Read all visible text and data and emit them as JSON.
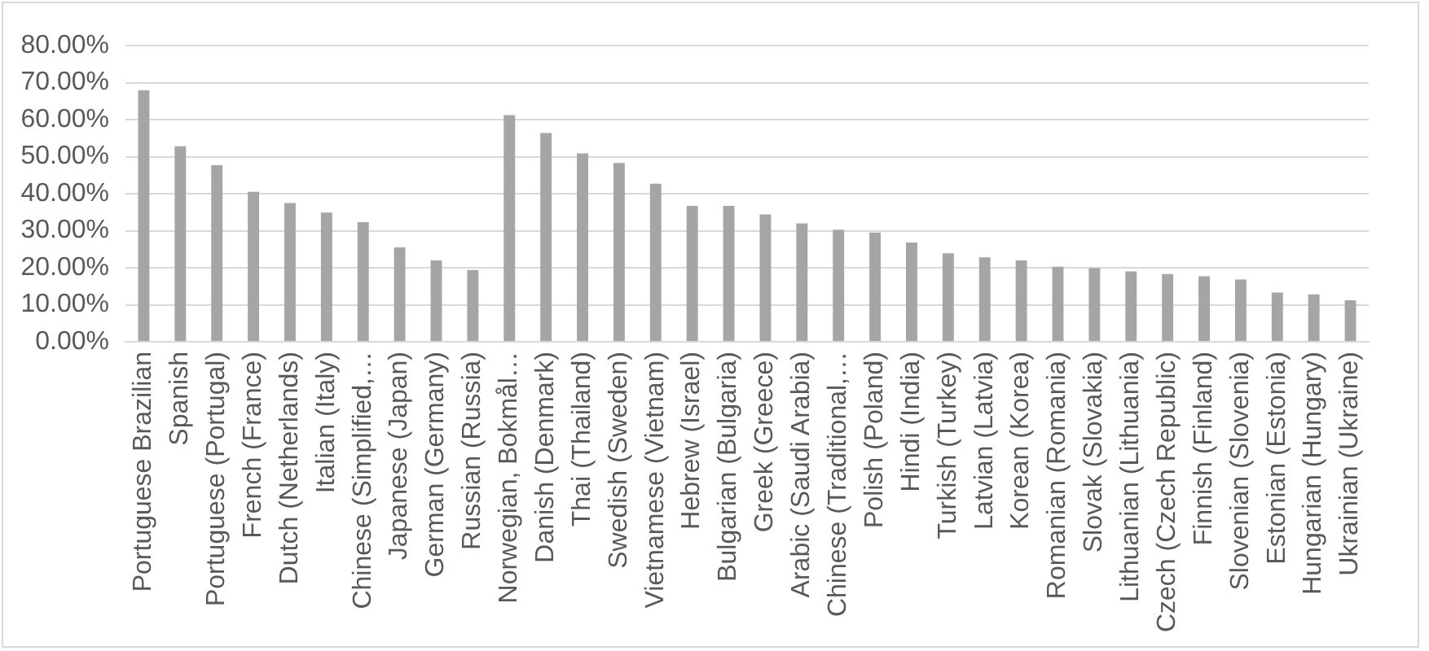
{
  "chart_data": {
    "type": "bar",
    "categories": [
      "Portuguese Brazilian",
      "Spanish",
      "Portuguese (Portugal)",
      "French (France)",
      "Dutch (Netherlands)",
      "Italian (Italy)",
      "Chinese (Simplified,…",
      "Japanese (Japan)",
      "German (Germany)",
      "Russian (Russia)",
      "Norwegian, Bokmål…",
      "Danish (Denmark)",
      "Thai (Thailand)",
      "Swedish (Sweden)",
      "Vietnamese (Vietnam)",
      "Hebrew (Israel)",
      "Bulgarian (Bulgaria)",
      "Greek (Greece)",
      "Arabic (Saudi Arabia)",
      "Chinese (Traditional,…",
      "Polish (Poland)",
      "Hindi (India)",
      "Turkish (Turkey)",
      "Latvian (Latvia)",
      "Korean (Korea)",
      "Romanian (Romania)",
      "Slovak (Slovakia)",
      "Lithuanian (Lithuania)",
      "Czech (Czech Republic)",
      "Finnish (Finland)",
      "Slovenian (Slovenia)",
      "Estonian (Estonia)",
      "Hungarian (Hungary)",
      "Ukrainian (Ukraine)"
    ],
    "values": [
      67.9,
      52.8,
      47.7,
      40.5,
      37.5,
      34.9,
      32.3,
      25.5,
      22.0,
      19.4,
      61.2,
      56.4,
      50.9,
      48.3,
      42.7,
      36.7,
      36.7,
      34.4,
      32.0,
      30.3,
      29.5,
      26.8,
      23.9,
      22.8,
      22.0,
      20.3,
      19.9,
      19.0,
      18.3,
      17.7,
      16.8,
      13.3,
      12.8,
      11.2
    ],
    "color": "#a5a5a5",
    "ylim": [
      0,
      80
    ],
    "yticks": [
      {
        "value": 0,
        "label": "0.00%"
      },
      {
        "value": 10,
        "label": "10.00%"
      },
      {
        "value": 20,
        "label": "20.00%"
      },
      {
        "value": 30,
        "label": "30.00%"
      },
      {
        "value": 40,
        "label": "40.00%"
      },
      {
        "value": 50,
        "label": "50.00%"
      },
      {
        "value": 60,
        "label": "60.00%"
      },
      {
        "value": 70,
        "label": "70.00%"
      },
      {
        "value": 80,
        "label": "80.00%"
      }
    ],
    "grid": "y"
  }
}
